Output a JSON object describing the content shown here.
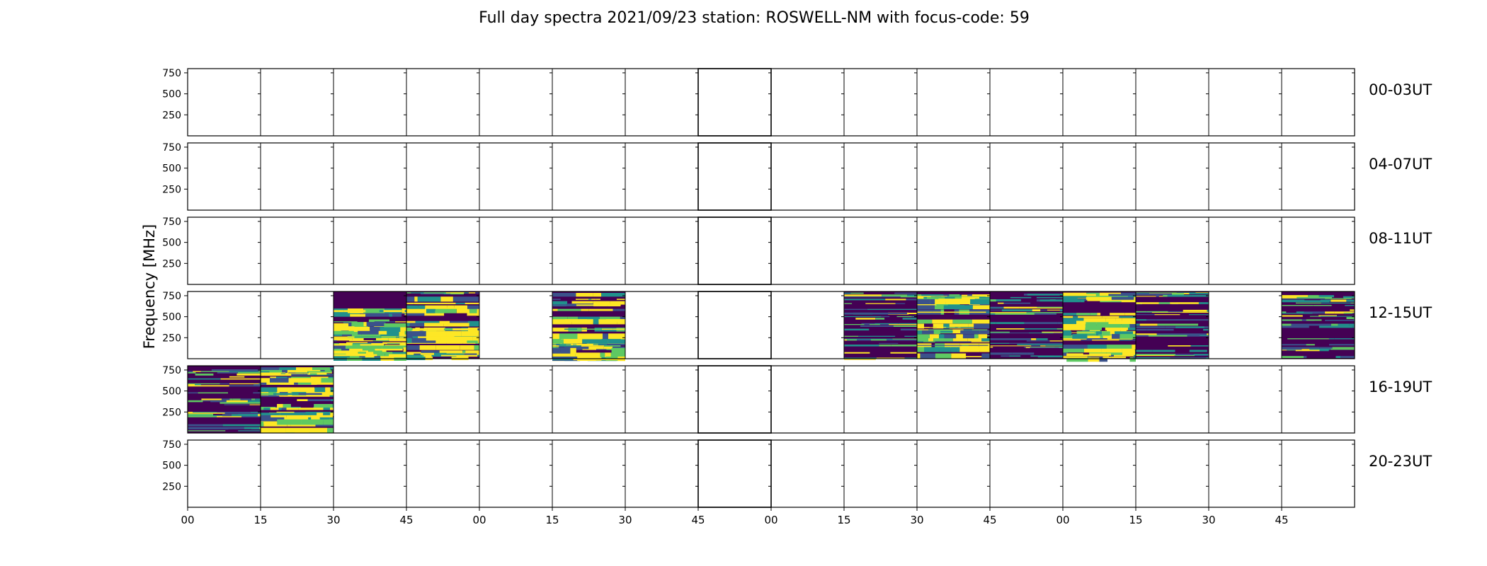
{
  "chart_data": {
    "type": "heatmap",
    "title": "Full day spectra 2021/09/23 station: ROSWELL-NM with focus-code: 59",
    "ylabel": "Frequency [MHz]",
    "xlabel": "",
    "y_ticks": [
      250,
      500,
      750
    ],
    "ylim": [
      0,
      800
    ],
    "x_tick_labels": [
      "00",
      "15",
      "30",
      "45",
      "00",
      "15",
      "30",
      "45",
      "00",
      "15",
      "30",
      "45",
      "00",
      "15",
      "30",
      "45"
    ],
    "colormap": [
      "#440154",
      "#3b528b",
      "#21918c",
      "#5ec962",
      "#fde725"
    ],
    "rows": [
      {
        "label": "00-03UT",
        "panels": [
          "none",
          "none",
          "none",
          "none",
          "none",
          "none",
          "none",
          "none",
          "none",
          "none",
          "none",
          "none",
          "none",
          "none",
          "none",
          "none"
        ]
      },
      {
        "label": "04-07UT",
        "panels": [
          "none",
          "none",
          "none",
          "none",
          "none",
          "none",
          "none",
          "none",
          "none",
          "none",
          "none",
          "none",
          "none",
          "none",
          "none",
          "none"
        ]
      },
      {
        "label": "08-11UT",
        "panels": [
          "none",
          "none",
          "none",
          "none",
          "none",
          "none",
          "none",
          "none",
          "none",
          "none",
          "none",
          "none",
          "none",
          "none",
          "none",
          "none"
        ]
      },
      {
        "label": "12-15UT",
        "panels": [
          "none",
          "none",
          "strong",
          "strong",
          "none",
          "strong",
          "none",
          "none",
          "none",
          "weak",
          "strong",
          "weak",
          "strong",
          "weak",
          "none",
          "weak"
        ]
      },
      {
        "label": "16-19UT",
        "panels": [
          "weak",
          "strong",
          "none",
          "none",
          "none",
          "none",
          "none",
          "none",
          "none",
          "none",
          "none",
          "none",
          "none",
          "none",
          "none",
          "none"
        ]
      },
      {
        "label": "20-23UT",
        "panels": [
          "none",
          "none",
          "none",
          "none",
          "none",
          "none",
          "none",
          "none",
          "none",
          "none",
          "none",
          "none",
          "none",
          "none",
          "none",
          "none"
        ]
      }
    ]
  }
}
